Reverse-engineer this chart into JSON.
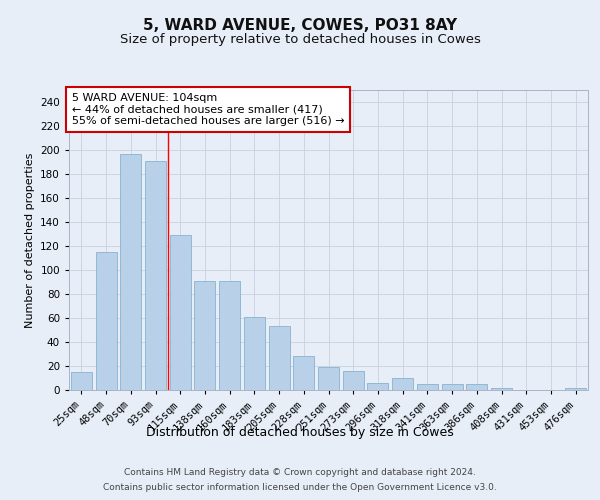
{
  "title1": "5, WARD AVENUE, COWES, PO31 8AY",
  "title2": "Size of property relative to detached houses in Cowes",
  "xlabel": "Distribution of detached houses by size in Cowes",
  "ylabel": "Number of detached properties",
  "categories": [
    "25sqm",
    "48sqm",
    "70sqm",
    "93sqm",
    "115sqm",
    "138sqm",
    "160sqm",
    "183sqm",
    "205sqm",
    "228sqm",
    "251sqm",
    "273sqm",
    "296sqm",
    "318sqm",
    "341sqm",
    "363sqm",
    "386sqm",
    "408sqm",
    "431sqm",
    "453sqm",
    "476sqm"
  ],
  "values": [
    15,
    115,
    197,
    191,
    129,
    91,
    91,
    61,
    53,
    28,
    19,
    16,
    6,
    10,
    5,
    5,
    5,
    2,
    0,
    0,
    2
  ],
  "bar_color": "#b8d0e8",
  "bar_edge_color": "#7aaacb",
  "redline_x": 3.5,
  "annotation_text": "5 WARD AVENUE: 104sqm\n← 44% of detached houses are smaller (417)\n55% of semi-detached houses are larger (516) →",
  "annotation_box_color": "#ffffff",
  "annotation_box_edge": "#cc0000",
  "footer1": "Contains HM Land Registry data © Crown copyright and database right 2024.",
  "footer2": "Contains public sector information licensed under the Open Government Licence v3.0.",
  "ylim": [
    0,
    250
  ],
  "yticks": [
    0,
    20,
    40,
    60,
    80,
    100,
    120,
    140,
    160,
    180,
    200,
    220,
    240
  ],
  "title1_fontsize": 11,
  "title2_fontsize": 9.5,
  "xlabel_fontsize": 9,
  "ylabel_fontsize": 8,
  "tick_fontsize": 7.5,
  "annotation_fontsize": 8,
  "footer_fontsize": 6.5,
  "background_color": "#e8eef8",
  "axes_bg_color": "#e8eef8",
  "grid_color": "#c8d0de"
}
